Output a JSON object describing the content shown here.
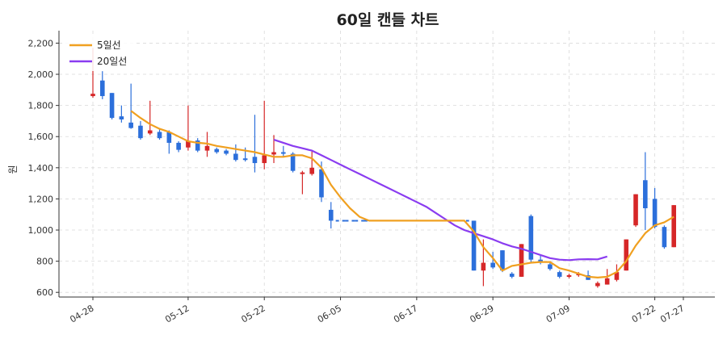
{
  "chart_data": {
    "type": "candlestick",
    "title": "60일 캔들 차트",
    "ylabel": "원",
    "xlabel": "",
    "ylim": [
      570,
      2280
    ],
    "yticks": [
      600,
      800,
      1000,
      1200,
      1400,
      1600,
      1800,
      2000,
      2200
    ],
    "ytick_labels": [
      "600",
      "800",
      "1,000",
      "1,200",
      "1,400",
      "1,600",
      "1,800",
      "2,000",
      "2,200"
    ],
    "xtick_labels": [
      "04-28",
      "05-12",
      "05-22",
      "06-05",
      "06-17",
      "06-29",
      "07-09",
      "07-22",
      "07-27"
    ],
    "xtick_index": [
      0,
      10,
      18,
      26,
      34,
      42,
      50,
      59,
      62
    ],
    "grid": true,
    "legend_position": "top-left",
    "colors": {
      "up": "#d62728",
      "down": "#2c6fdb",
      "ma5": "#f0a020",
      "ma20": "#8a3cf0"
    },
    "series": [
      {
        "name": "5일선"
      },
      {
        "name": "20일선"
      }
    ],
    "candles": [
      {
        "i": 0,
        "o": 1860,
        "h": 2170,
        "l": 1850,
        "c": 1875
      },
      {
        "i": 1,
        "o": 1960,
        "h": 2020,
        "l": 1840,
        "c": 1860
      },
      {
        "i": 2,
        "o": 1880,
        "h": 1880,
        "l": 1710,
        "c": 1720
      },
      {
        "i": 3,
        "o": 1730,
        "h": 1800,
        "l": 1690,
        "c": 1710
      },
      {
        "i": 4,
        "o": 1690,
        "h": 1940,
        "l": 1650,
        "c": 1655
      },
      {
        "i": 5,
        "o": 1670,
        "h": 1700,
        "l": 1580,
        "c": 1590
      },
      {
        "i": 6,
        "o": 1620,
        "h": 1830,
        "l": 1610,
        "c": 1640
      },
      {
        "i": 7,
        "o": 1630,
        "h": 1650,
        "l": 1580,
        "c": 1590
      },
      {
        "i": 8,
        "o": 1630,
        "h": 1640,
        "l": 1490,
        "c": 1560
      },
      {
        "i": 9,
        "o": 1560,
        "h": 1570,
        "l": 1500,
        "c": 1515
      },
      {
        "i": 10,
        "o": 1530,
        "h": 1800,
        "l": 1510,
        "c": 1570
      },
      {
        "i": 11,
        "o": 1575,
        "h": 1590,
        "l": 1500,
        "c": 1510
      },
      {
        "i": 12,
        "o": 1510,
        "h": 1630,
        "l": 1470,
        "c": 1540
      },
      {
        "i": 13,
        "o": 1520,
        "h": 1530,
        "l": 1490,
        "c": 1500
      },
      {
        "i": 14,
        "o": 1510,
        "h": 1520,
        "l": 1480,
        "c": 1490
      },
      {
        "i": 15,
        "o": 1490,
        "h": 1550,
        "l": 1440,
        "c": 1450
      },
      {
        "i": 16,
        "o": 1460,
        "h": 1530,
        "l": 1440,
        "c": 1450
      },
      {
        "i": 17,
        "o": 1470,
        "h": 1740,
        "l": 1370,
        "c": 1430
      },
      {
        "i": 18,
        "o": 1430,
        "h": 1830,
        "l": 1390,
        "c": 1480
      },
      {
        "i": 19,
        "o": 1485,
        "h": 1610,
        "l": 1430,
        "c": 1500
      },
      {
        "i": 20,
        "o": 1500,
        "h": 1540,
        "l": 1470,
        "c": 1490
      },
      {
        "i": 21,
        "o": 1490,
        "h": 1500,
        "l": 1370,
        "c": 1380
      },
      {
        "i": 22,
        "o": 1360,
        "h": 1380,
        "l": 1230,
        "c": 1370
      },
      {
        "i": 23,
        "o": 1360,
        "h": 1510,
        "l": 1350,
        "c": 1400
      },
      {
        "i": 24,
        "o": 1390,
        "h": 1440,
        "l": 1180,
        "c": 1210
      },
      {
        "i": 25,
        "o": 1130,
        "h": 1180,
        "l": 1010,
        "c": 1060
      },
      {
        "i": 26,
        "o": 1060,
        "h": 1060,
        "l": 1060,
        "c": 1060
      },
      {
        "i": 27,
        "o": 1060,
        "h": 1060,
        "l": 1060,
        "c": 1060
      },
      {
        "i": 28,
        "o": 1060,
        "h": 1060,
        "l": 1060,
        "c": 1060
      },
      {
        "i": 29,
        "o": 1060,
        "h": 1060,
        "l": 1060,
        "c": 1060
      },
      {
        "i": 30,
        "o": 1060,
        "h": 1060,
        "l": 1060,
        "c": 1060
      },
      {
        "i": 31,
        "o": 1060,
        "h": 1060,
        "l": 1060,
        "c": 1060
      },
      {
        "i": 32,
        "o": 1060,
        "h": 1060,
        "l": 1060,
        "c": 1060
      },
      {
        "i": 33,
        "o": 1060,
        "h": 1060,
        "l": 1060,
        "c": 1060
      },
      {
        "i": 34,
        "o": 1060,
        "h": 1060,
        "l": 1060,
        "c": 1060
      },
      {
        "i": 35,
        "o": 1060,
        "h": 1060,
        "l": 1060,
        "c": 1060
      },
      {
        "i": 36,
        "o": 1060,
        "h": 1060,
        "l": 1060,
        "c": 1060
      },
      {
        "i": 37,
        "o": 1060,
        "h": 1060,
        "l": 1060,
        "c": 1060
      },
      {
        "i": 38,
        "o": 1060,
        "h": 1060,
        "l": 1060,
        "c": 1060
      },
      {
        "i": 39,
        "o": 1060,
        "h": 1060,
        "l": 1060,
        "c": 1060
      },
      {
        "i": 40,
        "o": 1060,
        "h": 1060,
        "l": 740,
        "c": 740
      },
      {
        "i": 41,
        "o": 740,
        "h": 940,
        "l": 640,
        "c": 790
      },
      {
        "i": 42,
        "o": 790,
        "h": 860,
        "l": 750,
        "c": 760
      },
      {
        "i": 43,
        "o": 870,
        "h": 870,
        "l": 730,
        "c": 740
      },
      {
        "i": 44,
        "o": 720,
        "h": 730,
        "l": 690,
        "c": 700
      },
      {
        "i": 45,
        "o": 700,
        "h": 910,
        "l": 700,
        "c": 910
      },
      {
        "i": 46,
        "o": 1090,
        "h": 1100,
        "l": 790,
        "c": 810
      },
      {
        "i": 47,
        "o": 810,
        "h": 840,
        "l": 780,
        "c": 790
      },
      {
        "i": 48,
        "o": 780,
        "h": 790,
        "l": 740,
        "c": 750
      },
      {
        "i": 49,
        "o": 730,
        "h": 740,
        "l": 690,
        "c": 700
      },
      {
        "i": 50,
        "o": 700,
        "h": 720,
        "l": 690,
        "c": 710
      },
      {
        "i": 51,
        "o": 710,
        "h": 730,
        "l": 700,
        "c": 720
      },
      {
        "i": 52,
        "o": 710,
        "h": 740,
        "l": 680,
        "c": 680
      },
      {
        "i": 53,
        "o": 640,
        "h": 670,
        "l": 630,
        "c": 660
      },
      {
        "i": 54,
        "o": 650,
        "h": 750,
        "l": 650,
        "c": 690
      },
      {
        "i": 55,
        "o": 680,
        "h": 780,
        "l": 670,
        "c": 730
      },
      {
        "i": 56,
        "o": 740,
        "h": 940,
        "l": 740,
        "c": 940
      },
      {
        "i": 57,
        "o": 1030,
        "h": 1230,
        "l": 1020,
        "c": 1230
      },
      {
        "i": 58,
        "o": 1320,
        "h": 1500,
        "l": 1000,
        "c": 1140
      },
      {
        "i": 59,
        "o": 1200,
        "h": 1270,
        "l": 1010,
        "c": 1020
      },
      {
        "i": 60,
        "o": 1020,
        "h": 1030,
        "l": 880,
        "c": 890
      },
      {
        "i": 61,
        "o": 890,
        "h": 1160,
        "l": 890,
        "c": 1160
      }
    ],
    "ma5": [
      [
        4,
        1765
      ],
      [
        5,
        1720
      ],
      [
        6,
        1680
      ],
      [
        7,
        1650
      ],
      [
        8,
        1630
      ],
      [
        9,
        1600
      ],
      [
        10,
        1570
      ],
      [
        11,
        1560
      ],
      [
        12,
        1555
      ],
      [
        13,
        1540
      ],
      [
        14,
        1530
      ],
      [
        15,
        1520
      ],
      [
        16,
        1510
      ],
      [
        17,
        1500
      ],
      [
        18,
        1485
      ],
      [
        19,
        1470
      ],
      [
        20,
        1470
      ],
      [
        21,
        1480
      ],
      [
        22,
        1480
      ],
      [
        23,
        1460
      ],
      [
        24,
        1400
      ],
      [
        25,
        1290
      ],
      [
        26,
        1210
      ],
      [
        27,
        1140
      ],
      [
        28,
        1085
      ],
      [
        29,
        1060
      ],
      [
        30,
        1060
      ],
      [
        31,
        1060
      ],
      [
        32,
        1060
      ],
      [
        33,
        1060
      ],
      [
        34,
        1060
      ],
      [
        35,
        1060
      ],
      [
        36,
        1060
      ],
      [
        37,
        1060
      ],
      [
        38,
        1060
      ],
      [
        39,
        1060
      ],
      [
        40,
        990
      ],
      [
        41,
        890
      ],
      [
        42,
        820
      ],
      [
        43,
        740
      ],
      [
        44,
        770
      ],
      [
        45,
        780
      ],
      [
        46,
        790
      ],
      [
        47,
        795
      ],
      [
        48,
        795
      ],
      [
        49,
        755
      ],
      [
        50,
        740
      ],
      [
        51,
        720
      ],
      [
        52,
        700
      ],
      [
        53,
        695
      ],
      [
        54,
        700
      ],
      [
        55,
        730
      ],
      [
        56,
        800
      ],
      [
        57,
        900
      ],
      [
        58,
        980
      ],
      [
        59,
        1030
      ],
      [
        60,
        1050
      ],
      [
        61,
        1085
      ]
    ],
    "ma20": [
      [
        19,
        1580
      ],
      [
        20,
        1560
      ],
      [
        21,
        1540
      ],
      [
        22,
        1525
      ],
      [
        23,
        1510
      ],
      [
        24,
        1480
      ],
      [
        25,
        1450
      ],
      [
        26,
        1420
      ],
      [
        27,
        1390
      ],
      [
        28,
        1360
      ],
      [
        29,
        1330
      ],
      [
        30,
        1300
      ],
      [
        31,
        1270
      ],
      [
        32,
        1240
      ],
      [
        33,
        1210
      ],
      [
        34,
        1180
      ],
      [
        35,
        1150
      ],
      [
        36,
        1110
      ],
      [
        37,
        1070
      ],
      [
        38,
        1030
      ],
      [
        39,
        1000
      ],
      [
        40,
        980
      ],
      [
        41,
        960
      ],
      [
        42,
        940
      ],
      [
        43,
        915
      ],
      [
        44,
        895
      ],
      [
        45,
        880
      ],
      [
        46,
        860
      ],
      [
        47,
        840
      ],
      [
        48,
        820
      ],
      [
        49,
        810
      ],
      [
        50,
        807
      ],
      [
        51,
        812
      ],
      [
        52,
        813
      ],
      [
        53,
        812
      ],
      [
        54,
        830
      ]
    ]
  }
}
